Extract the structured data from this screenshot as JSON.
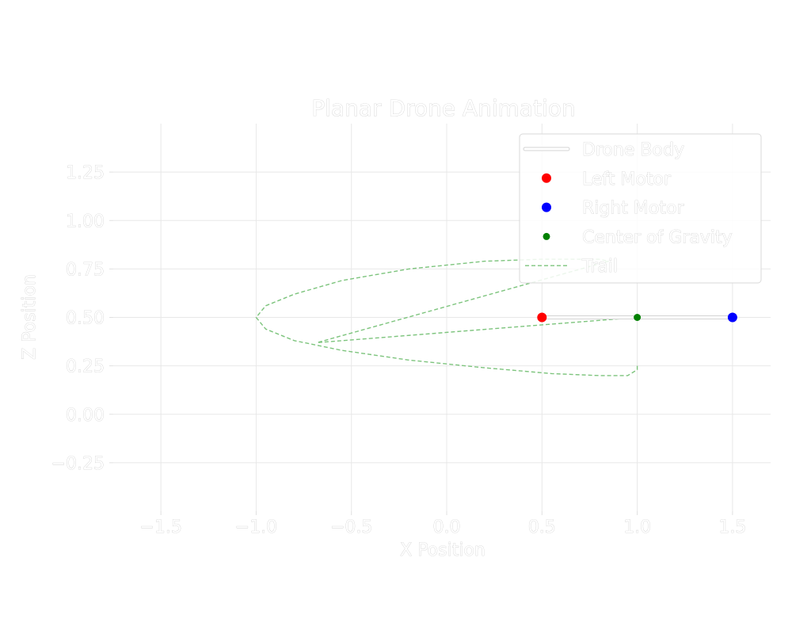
{
  "chart_data": {
    "type": "line",
    "title": "Planar Drone Animation",
    "xlabel": "X Position",
    "ylabel": "Z Position",
    "xlim": [
      -1.75,
      1.7
    ],
    "ylim": [
      -0.5,
      1.5
    ],
    "xticks": [
      -1.5,
      -1.0,
      -0.5,
      0.0,
      0.5,
      1.0,
      1.5
    ],
    "xtick_labels": [
      "−1.5",
      "−1.0",
      "−0.5",
      "0.0",
      "0.5",
      "1.0",
      "1.5"
    ],
    "yticks": [
      -0.25,
      0.0,
      0.25,
      0.5,
      0.75,
      1.0,
      1.25
    ],
    "ytick_labels": [
      "−0.25",
      "0.00",
      "0.25",
      "0.50",
      "0.75",
      "1.00",
      "1.25"
    ],
    "grid": true,
    "legend_placement": "top-right",
    "series": [
      {
        "name": "Drone Body",
        "kind": "line",
        "color": "#ffffff",
        "x": [
          0.5,
          1.5
        ],
        "y": [
          0.5,
          0.5
        ]
      },
      {
        "name": "Left Motor",
        "kind": "point",
        "color": "#ff0000",
        "x": [
          0.5
        ],
        "y": [
          0.5
        ]
      },
      {
        "name": "Right Motor",
        "kind": "point",
        "color": "#0000ff",
        "x": [
          1.5
        ],
        "y": [
          0.5
        ]
      },
      {
        "name": "Center of Gravity",
        "kind": "point",
        "color": "#008000",
        "x": [
          1.0
        ],
        "y": [
          0.5
        ]
      },
      {
        "name": "Trail",
        "kind": "dashed-line",
        "color": "#7dc47d",
        "x": [
          1.0,
          1.0,
          0.95,
          0.8,
          0.55,
          0.2,
          -0.2,
          -0.55,
          -0.8,
          -0.95,
          -1.0,
          -0.95,
          -0.8,
          -0.55,
          -0.2,
          0.2,
          0.5,
          0.8,
          0.85,
          -0.68,
          1.0
        ],
        "y": [
          0.25,
          0.23,
          0.2,
          0.2,
          0.21,
          0.24,
          0.28,
          0.33,
          0.38,
          0.44,
          0.5,
          0.56,
          0.62,
          0.69,
          0.75,
          0.79,
          0.8,
          0.8,
          0.79,
          0.37,
          0.5
        ]
      }
    ]
  }
}
